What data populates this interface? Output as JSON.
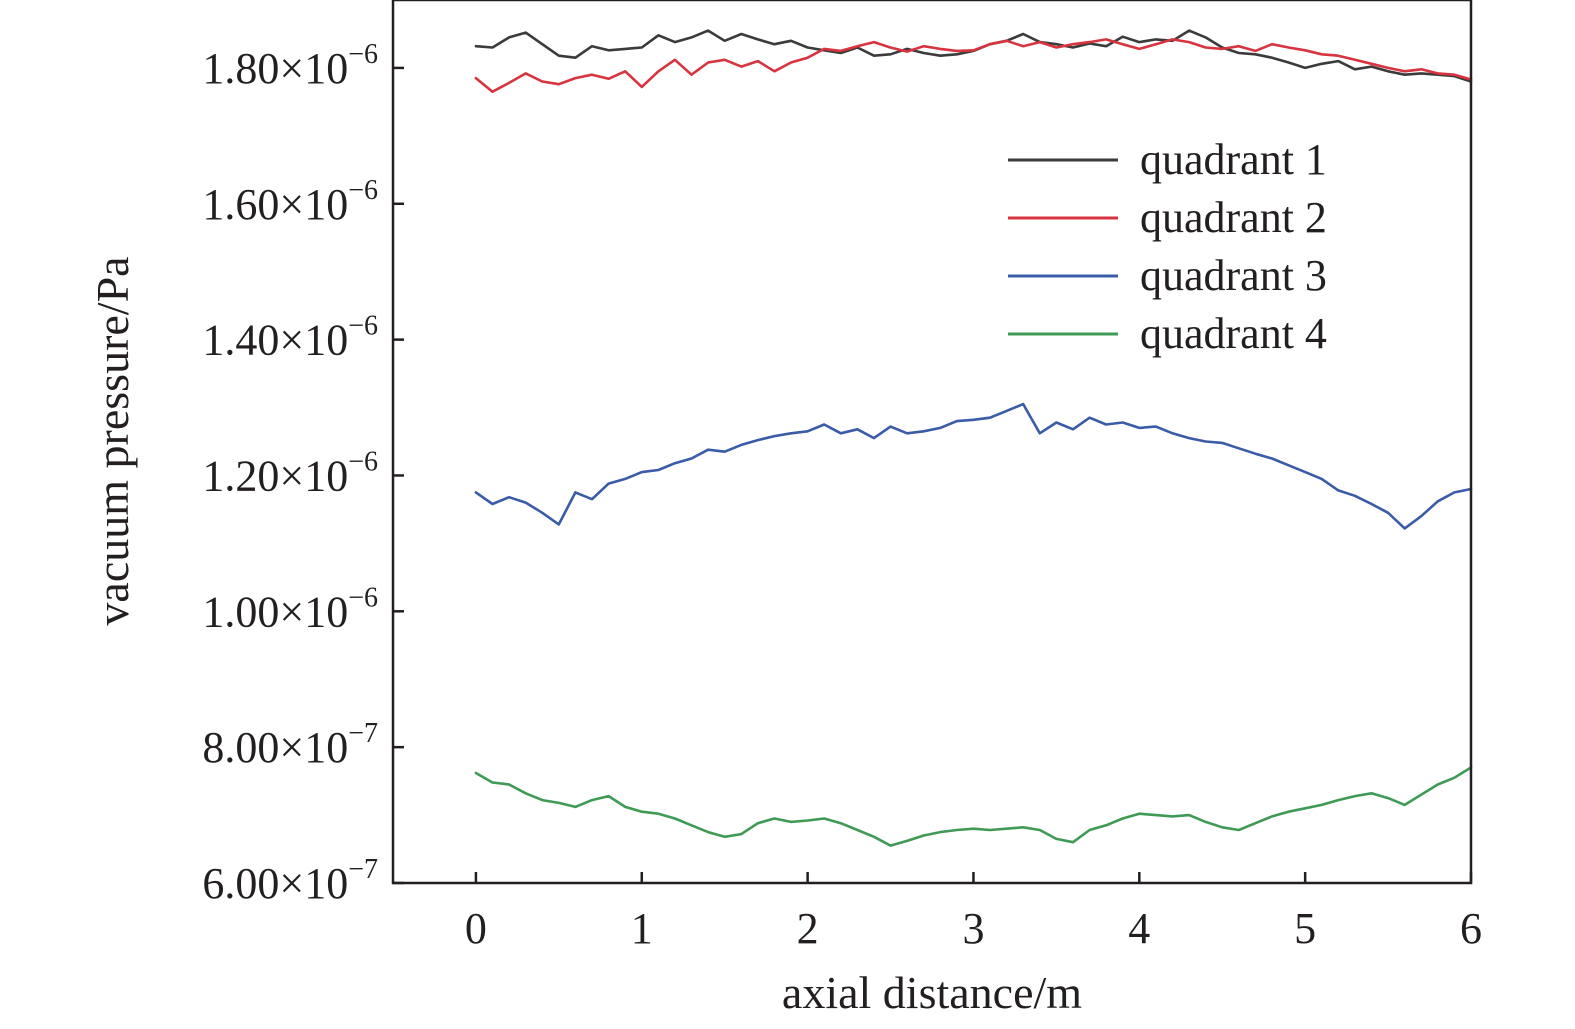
{
  "chart_data": {
    "type": "line",
    "xlabel": "axial distance/m",
    "ylabel": "vacuum pressure/Pa",
    "xlim": [
      -0.5,
      6
    ],
    "ylim": [
      6e-07,
      1.9e-06
    ],
    "x_ticks": [
      0,
      1,
      2,
      3,
      4,
      5,
      6
    ],
    "x_tick_labels": [
      "0",
      "1",
      "2",
      "3",
      "4",
      "5",
      "6"
    ],
    "y_ticks": [
      6e-07,
      8e-07,
      1e-06,
      1.2e-06,
      1.4e-06,
      1.6e-06,
      1.8e-06
    ],
    "y_tick_labels": [
      {
        "mantissa": "6.00×10",
        "exp": "−7"
      },
      {
        "mantissa": "8.00×10",
        "exp": "−7"
      },
      {
        "mantissa": "1.00×10",
        "exp": "−6"
      },
      {
        "mantissa": "1.20×10",
        "exp": "−6"
      },
      {
        "mantissa": "1.40×10",
        "exp": "−6"
      },
      {
        "mantissa": "1.60×10",
        "exp": "−6"
      },
      {
        "mantissa": "1.80×10",
        "exp": "−6"
      }
    ],
    "grid": false,
    "legend_position": "upper-right",
    "series": [
      {
        "name": "quadrant 1",
        "color": "#3b3b3b",
        "x": [
          0,
          0.1,
          0.2,
          0.3,
          0.4,
          0.5,
          0.6,
          0.7,
          0.8,
          0.9,
          1.0,
          1.1,
          1.2,
          1.3,
          1.4,
          1.5,
          1.6,
          1.7,
          1.8,
          1.9,
          2.0,
          2.1,
          2.2,
          2.3,
          2.4,
          2.5,
          2.6,
          2.7,
          2.8,
          2.9,
          3.0,
          3.1,
          3.2,
          3.3,
          3.4,
          3.5,
          3.6,
          3.7,
          3.8,
          3.9,
          4.0,
          4.1,
          4.2,
          4.3,
          4.4,
          4.5,
          4.6,
          4.7,
          4.8,
          4.9,
          5.0,
          5.1,
          5.2,
          5.3,
          5.4,
          5.5,
          5.6,
          5.7,
          5.8,
          5.9,
          6.0
        ],
        "y": [
          1.832e-06,
          1.83e-06,
          1.845e-06,
          1.852e-06,
          1.835e-06,
          1.818e-06,
          1.815e-06,
          1.832e-06,
          1.826e-06,
          1.828e-06,
          1.83e-06,
          1.848e-06,
          1.838e-06,
          1.845e-06,
          1.855e-06,
          1.84e-06,
          1.85e-06,
          1.842e-06,
          1.835e-06,
          1.84e-06,
          1.83e-06,
          1.826e-06,
          1.822e-06,
          1.83e-06,
          1.818e-06,
          1.82e-06,
          1.828e-06,
          1.822e-06,
          1.818e-06,
          1.82e-06,
          1.825e-06,
          1.835e-06,
          1.84e-06,
          1.85e-06,
          1.838e-06,
          1.835e-06,
          1.83e-06,
          1.836e-06,
          1.832e-06,
          1.846e-06,
          1.838e-06,
          1.842e-06,
          1.84e-06,
          1.855e-06,
          1.845e-06,
          1.83e-06,
          1.822e-06,
          1.82e-06,
          1.815e-06,
          1.808e-06,
          1.8e-06,
          1.806e-06,
          1.81e-06,
          1.798e-06,
          1.802e-06,
          1.795e-06,
          1.79e-06,
          1.792e-06,
          1.79e-06,
          1.788e-06,
          1.78e-06
        ]
      },
      {
        "name": "quadrant 2",
        "color": "#d7343f",
        "x": [
          0,
          0.1,
          0.2,
          0.3,
          0.4,
          0.5,
          0.6,
          0.7,
          0.8,
          0.9,
          1.0,
          1.1,
          1.2,
          1.3,
          1.4,
          1.5,
          1.6,
          1.7,
          1.8,
          1.9,
          2.0,
          2.1,
          2.2,
          2.3,
          2.4,
          2.5,
          2.6,
          2.7,
          2.8,
          2.9,
          3.0,
          3.1,
          3.2,
          3.3,
          3.4,
          3.5,
          3.6,
          3.7,
          3.8,
          3.9,
          4.0,
          4.1,
          4.2,
          4.3,
          4.4,
          4.5,
          4.6,
          4.7,
          4.8,
          4.9,
          5.0,
          5.1,
          5.2,
          5.3,
          5.4,
          5.5,
          5.6,
          5.7,
          5.8,
          5.9,
          6.0
        ],
        "y": [
          1.785e-06,
          1.765e-06,
          1.778e-06,
          1.792e-06,
          1.78e-06,
          1.776e-06,
          1.785e-06,
          1.79e-06,
          1.784e-06,
          1.795e-06,
          1.772e-06,
          1.795e-06,
          1.812e-06,
          1.79e-06,
          1.808e-06,
          1.812e-06,
          1.802e-06,
          1.81e-06,
          1.795e-06,
          1.808e-06,
          1.815e-06,
          1.828e-06,
          1.825e-06,
          1.832e-06,
          1.838e-06,
          1.83e-06,
          1.824e-06,
          1.832e-06,
          1.828e-06,
          1.825e-06,
          1.826e-06,
          1.835e-06,
          1.84e-06,
          1.832e-06,
          1.838e-06,
          1.83e-06,
          1.835e-06,
          1.838e-06,
          1.842e-06,
          1.835e-06,
          1.828e-06,
          1.835e-06,
          1.842e-06,
          1.838e-06,
          1.83e-06,
          1.828e-06,
          1.832e-06,
          1.825e-06,
          1.835e-06,
          1.83e-06,
          1.826e-06,
          1.82e-06,
          1.818e-06,
          1.812e-06,
          1.806e-06,
          1.8e-06,
          1.795e-06,
          1.798e-06,
          1.792e-06,
          1.79e-06,
          1.783e-06
        ]
      },
      {
        "name": "quadrant 3",
        "color": "#3a5ca8",
        "x": [
          0,
          0.1,
          0.2,
          0.3,
          0.4,
          0.5,
          0.6,
          0.7,
          0.8,
          0.9,
          1.0,
          1.1,
          1.2,
          1.3,
          1.4,
          1.5,
          1.6,
          1.7,
          1.8,
          1.9,
          2.0,
          2.1,
          2.2,
          2.3,
          2.4,
          2.5,
          2.6,
          2.7,
          2.8,
          2.9,
          3.0,
          3.1,
          3.2,
          3.3,
          3.4,
          3.5,
          3.6,
          3.7,
          3.8,
          3.9,
          4.0,
          4.1,
          4.2,
          4.3,
          4.4,
          4.5,
          4.6,
          4.7,
          4.8,
          4.9,
          5.0,
          5.1,
          5.2,
          5.3,
          5.4,
          5.5,
          5.6,
          5.7,
          5.8,
          5.9,
          6.0
        ],
        "y": [
          1.175e-06,
          1.158e-06,
          1.168e-06,
          1.16e-06,
          1.145e-06,
          1.128e-06,
          1.175e-06,
          1.165e-06,
          1.188e-06,
          1.195e-06,
          1.205e-06,
          1.208e-06,
          1.218e-06,
          1.225e-06,
          1.238e-06,
          1.235e-06,
          1.245e-06,
          1.252e-06,
          1.258e-06,
          1.262e-06,
          1.265e-06,
          1.275e-06,
          1.262e-06,
          1.268e-06,
          1.255e-06,
          1.272e-06,
          1.262e-06,
          1.265e-06,
          1.27e-06,
          1.28e-06,
          1.282e-06,
          1.285e-06,
          1.295e-06,
          1.305e-06,
          1.262e-06,
          1.278e-06,
          1.268e-06,
          1.285e-06,
          1.275e-06,
          1.278e-06,
          1.27e-06,
          1.272e-06,
          1.262e-06,
          1.255e-06,
          1.25e-06,
          1.248e-06,
          1.24e-06,
          1.232e-06,
          1.225e-06,
          1.215e-06,
          1.205e-06,
          1.195e-06,
          1.178e-06,
          1.17e-06,
          1.158e-06,
          1.145e-06,
          1.122e-06,
          1.14e-06,
          1.162e-06,
          1.175e-06,
          1.18e-06
        ]
      },
      {
        "name": "quadrant 4",
        "color": "#3f9a56",
        "x": [
          0,
          0.1,
          0.2,
          0.3,
          0.4,
          0.5,
          0.6,
          0.7,
          0.8,
          0.9,
          1.0,
          1.1,
          1.2,
          1.3,
          1.4,
          1.5,
          1.6,
          1.7,
          1.8,
          1.9,
          2.0,
          2.1,
          2.2,
          2.3,
          2.4,
          2.5,
          2.6,
          2.7,
          2.8,
          2.9,
          3.0,
          3.1,
          3.2,
          3.3,
          3.4,
          3.5,
          3.6,
          3.7,
          3.8,
          3.9,
          4.0,
          4.1,
          4.2,
          4.3,
          4.4,
          4.5,
          4.6,
          4.7,
          4.8,
          4.9,
          5.0,
          5.1,
          5.2,
          5.3,
          5.4,
          5.5,
          5.6,
          5.7,
          5.8,
          5.9,
          6.0
        ],
        "y": [
          7.62e-07,
          7.48e-07,
          7.45e-07,
          7.32e-07,
          7.22e-07,
          7.18e-07,
          7.12e-07,
          7.22e-07,
          7.28e-07,
          7.12e-07,
          7.05e-07,
          7.02e-07,
          6.95e-07,
          6.85e-07,
          6.75e-07,
          6.68e-07,
          6.72e-07,
          6.88e-07,
          6.95e-07,
          6.9e-07,
          6.92e-07,
          6.95e-07,
          6.88e-07,
          6.78e-07,
          6.68e-07,
          6.55e-07,
          6.62e-07,
          6.7e-07,
          6.75e-07,
          6.78e-07,
          6.8e-07,
          6.78e-07,
          6.8e-07,
          6.82e-07,
          6.78e-07,
          6.65e-07,
          6.6e-07,
          6.78e-07,
          6.85e-07,
          6.95e-07,
          7.02e-07,
          7e-07,
          6.98e-07,
          7e-07,
          6.9e-07,
          6.82e-07,
          6.78e-07,
          6.88e-07,
          6.98e-07,
          7.05e-07,
          7.1e-07,
          7.15e-07,
          7.22e-07,
          7.28e-07,
          7.32e-07,
          7.25e-07,
          7.15e-07,
          7.3e-07,
          7.45e-07,
          7.55e-07,
          7.7e-07
        ]
      }
    ]
  }
}
